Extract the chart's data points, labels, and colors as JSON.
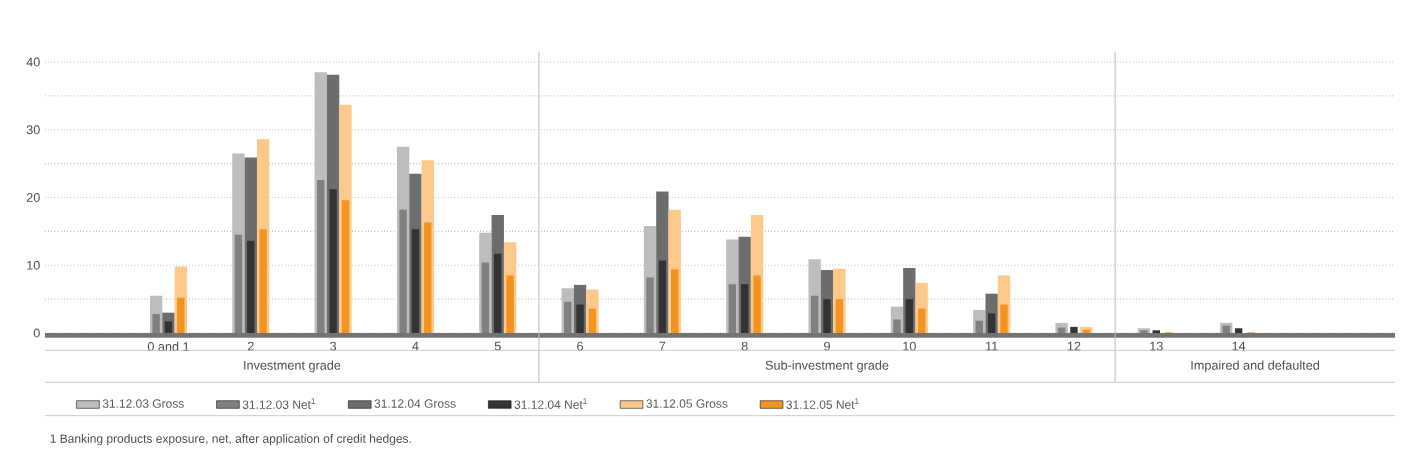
{
  "chart_data": {
    "type": "bar",
    "categories": [
      "0 and 1",
      "2",
      "3",
      "4",
      "5",
      "6",
      "7",
      "8",
      "9",
      "10",
      "11",
      "12",
      "13",
      "14"
    ],
    "series": [
      {
        "name": "31.12.03 Gross",
        "color": "#bdbdbd",
        "values": [
          5.5,
          26.5,
          38.5,
          27.5,
          14.8,
          6.6,
          15.8,
          13.8,
          10.9,
          3.9,
          3.4,
          1.5,
          0.7,
          1.5
        ]
      },
      {
        "name": "31.12.03 Net$^{1}$",
        "color": "#808080",
        "values": [
          2.8,
          14.5,
          22.6,
          18.2,
          10.4,
          4.6,
          8.2,
          7.2,
          5.5,
          2.0,
          1.8,
          0.8,
          0.4,
          1.1
        ]
      },
      {
        "name": "31.12.04 Gross",
        "color": "#6d6d70",
        "values": [
          3.0,
          25.9,
          38.1,
          23.5,
          17.4,
          7.1,
          20.9,
          14.2,
          9.3,
          9.6,
          5.8,
          null,
          null,
          null
        ]
      },
      {
        "name": "31.12.04 Net$^{1}$",
        "color": "#333333",
        "values": [
          1.7,
          13.6,
          21.2,
          15.3,
          11.7,
          4.2,
          10.7,
          7.2,
          5.0,
          5.0,
          2.9,
          0.9,
          0.4,
          0.7
        ]
      },
      {
        "name": "31.12.05 Gross",
        "color": "#fcc98a",
        "values": [
          9.8,
          28.6,
          33.7,
          25.5,
          13.4,
          6.4,
          18.2,
          17.4,
          9.5,
          7.4,
          8.5,
          0.9,
          null,
          null
        ]
      },
      {
        "name": "31.12.05 Net$^{1}$",
        "color": "#f39420",
        "values": [
          5.2,
          15.3,
          19.6,
          16.3,
          8.5,
          3.6,
          9.4,
          8.5,
          5.0,
          3.6,
          4.2,
          0.5,
          0.1,
          0.1
        ]
      }
    ],
    "ylim": [
      0,
      40
    ],
    "yticks": [
      0,
      {
        "value": 5,
        "label": null
      },
      10,
      {
        "value": 15,
        "label": null
      },
      20,
      {
        "value": 25,
        "label": null
      },
      30,
      {
        "value": 35,
        "label": null
      },
      40
    ],
    "grid": "y",
    "legend": "bottom",
    "annotations": [
      "Investment grade",
      "Sub-investment grade",
      "Impaired and defaulted",
      "1 Banking products exposure, net, after application of credit hedges."
    ]
  }
}
